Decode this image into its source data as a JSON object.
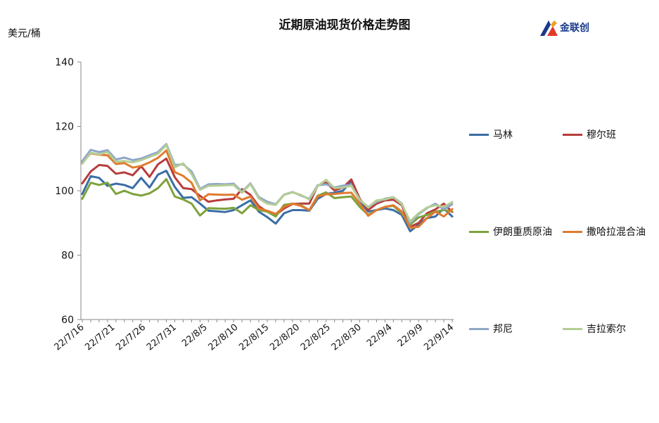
{
  "header": {
    "title": "近期原油现货价格走势图",
    "unit": "美元/桶",
    "logo_text": "金联创"
  },
  "chart_data": {
    "type": "line",
    "title": "近期原油现货价格走势图",
    "ylabel": "美元/桶",
    "xlabel": "",
    "ylim": [
      60,
      140
    ],
    "yticks": [
      60,
      80,
      100,
      120,
      140
    ],
    "x_tick_labels": [
      "22/7/16",
      "22/7/21",
      "22/7/26",
      "22/7/31",
      "22/8/5",
      "22/8/10",
      "22/8/15",
      "22/8/20",
      "22/8/25",
      "22/8/30",
      "22/9/4",
      "22/9/9",
      "22/9/14"
    ],
    "grid": false,
    "legend_position": "right",
    "x": [
      "22/7/15",
      "22/7/18",
      "22/7/19",
      "22/7/20",
      "22/7/21",
      "22/7/22",
      "22/7/25",
      "22/7/26",
      "22/7/27",
      "22/7/28",
      "22/7/29",
      "22/8/1",
      "22/8/2",
      "22/8/3",
      "22/8/4",
      "22/8/5",
      "22/8/8",
      "22/8/9",
      "22/8/10",
      "22/8/11",
      "22/8/12",
      "22/8/15",
      "22/8/16",
      "22/8/17",
      "22/8/18",
      "22/8/19",
      "22/8/22",
      "22/8/23",
      "22/8/24",
      "22/8/25",
      "22/8/26",
      "22/8/29",
      "22/8/30",
      "22/8/31",
      "22/9/1",
      "22/9/2",
      "22/9/5",
      "22/9/6",
      "22/9/7",
      "22/9/8",
      "22/9/9",
      "22/9/12",
      "22/9/13",
      "22/9/14",
      "22/9/15"
    ],
    "series": [
      {
        "name": "马林",
        "color": "#3a6ea5",
        "values": [
          99,
          104.5,
          104,
          101.5,
          102.2,
          101.8,
          100.8,
          104,
          101,
          105,
          106.2,
          101.2,
          97.8,
          98,
          96,
          93.8,
          93.6,
          93.4,
          94,
          95.5,
          97,
          93.5,
          91.8,
          89.8,
          93,
          94,
          94,
          93.8,
          97.5,
          99,
          99.4,
          100,
          103,
          97,
          93.5,
          94,
          94.5,
          94,
          92.5,
          87.4,
          89.5,
          91.5,
          92,
          94.5,
          92
        ]
      },
      {
        "name": "穆尔班",
        "color": "#b83c3c",
        "values": [
          102.3,
          106,
          108,
          107.7,
          105.3,
          105.7,
          104.8,
          107.6,
          104.3,
          108.2,
          110,
          104.2,
          100.8,
          100.5,
          98.4,
          96.6,
          97,
          97.3,
          97.5,
          100.5,
          98.7,
          95.2,
          93.5,
          92.5,
          94.5,
          95.9,
          96,
          96,
          101.6,
          102.5,
          100.1,
          101,
          103.5,
          97.5,
          94,
          96,
          97,
          97.2,
          95.5,
          88.8,
          90,
          93,
          94.2,
          96,
          93.4
        ]
      },
      {
        "name": "伊朗重质原油",
        "color": "#7ea23c",
        "values": [
          97.5,
          102.5,
          101.8,
          102.5,
          99,
          100,
          99,
          98.5,
          99.2,
          100.8,
          103.6,
          98.2,
          97.3,
          96,
          92.3,
          94.6,
          94.5,
          94.4,
          94.7,
          93,
          95.5,
          94,
          93.5,
          92,
          95.6,
          96,
          95.5,
          94,
          98.4,
          99.5,
          97.7,
          98,
          98.2,
          95,
          92.5,
          94,
          95,
          95.3,
          93,
          89.5,
          91.7,
          92.5,
          93.5,
          94,
          93.6
        ]
      },
      {
        "name": "撒哈拉混合油",
        "color": "#e07b2e",
        "values": [
          108.8,
          111.6,
          111.2,
          111,
          108.3,
          108.6,
          107.2,
          107.7,
          108.8,
          110.2,
          112.5,
          105.8,
          104.6,
          102.5,
          97,
          98.9,
          98.8,
          98.7,
          98.8,
          97.2,
          98.2,
          94.5,
          93.8,
          92.8,
          95,
          96,
          95.3,
          94,
          98.2,
          98.9,
          99,
          99.3,
          99.4,
          96,
          92.2,
          94,
          95,
          95.5,
          93.5,
          88.5,
          88.8,
          91.5,
          93.5,
          92,
          94.3
        ]
      },
      {
        "name": "邦尼",
        "color": "#8fa6c9",
        "values": [
          109.2,
          112.7,
          112,
          112.6,
          109.7,
          110.3,
          109.5,
          110,
          111,
          112,
          114.5,
          108,
          108.2,
          106,
          100.6,
          102,
          102.1,
          102,
          102.2,
          99.7,
          102.3,
          98,
          96.6,
          95.8,
          98.8,
          99.6,
          98.5,
          97.5,
          101.7,
          102,
          101,
          101.6,
          101.8,
          97,
          95,
          96.5,
          97.5,
          98,
          96,
          90,
          92.7,
          94.6,
          96,
          94.2,
          95.8
        ]
      },
      {
        "name": "吉拉索尔",
        "color": "#b5cd95",
        "values": [
          108.4,
          111.8,
          111.3,
          112,
          109,
          109.2,
          108.8,
          109.5,
          110.5,
          111.5,
          114.2,
          107.3,
          108.5,
          105.2,
          100.3,
          101.5,
          101.6,
          101.7,
          101.8,
          99.4,
          102.1,
          97.6,
          96,
          95.6,
          98.7,
          99.5,
          98.7,
          97.3,
          101.4,
          103.4,
          100.8,
          101,
          101.5,
          97.2,
          94.8,
          97,
          97.3,
          98,
          95.8,
          90.5,
          93,
          94.8,
          95.5,
          95,
          96.5
        ]
      }
    ]
  }
}
